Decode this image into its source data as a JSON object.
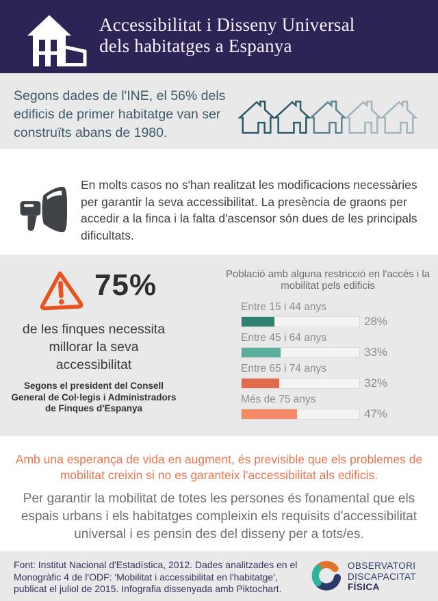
{
  "colors": {
    "header_bg": "#2d2355",
    "section_gray": "#e9e9ea",
    "accent_orange": "#e8531f",
    "highlight_orange": "#e8764e",
    "banner_text": "#3d5a68",
    "footer_navy": "#39305f"
  },
  "header": {
    "title_line1": "Accessibilitat i Disseny Universal",
    "title_line2": "dels habitatges a Espanya",
    "icon": "house-building-icon"
  },
  "ine_banner": {
    "text": "Segons dades de l'INE, el 56% dels edificis de primer habitatge van ser construïts abans de 1980.",
    "icon": "house-outline-icon",
    "house_colors": [
      "#2d5a68",
      "#2d5a68",
      "#5e8290",
      "#a2b5bd",
      "#a2b5bd"
    ]
  },
  "megaphone_note": {
    "icon": "megaphone-icon",
    "text": "En molts casos no s'han realitzat les modificacions necessàries per garantir la seva accessibilitat. La presència de graons per accedir a la finca i la falta d'ascensor són dues de les principals dificultats."
  },
  "stat_75": {
    "icon": "warning-triangle-icon",
    "value": "75%",
    "caption": "de les finques necessita millorar la seva accessibilitat",
    "source": "Segons el president del Consell General de Col·legis i Administradors de Finques d'Espanya"
  },
  "chart_data": {
    "type": "bar",
    "orientation": "horizontal",
    "title": "Població amb alguna restricció en l'accés i la mobilitat pels edificis",
    "categories": [
      "Entre 15 i 44 anys",
      "Entre 45 i 64 anys",
      "Entre 65 i 74 anys",
      "Més de 75 anys"
    ],
    "values": [
      28,
      33,
      32,
      47
    ],
    "value_labels": [
      "28%",
      "33%",
      "32%",
      "47%"
    ],
    "unit": "%",
    "xlim": [
      0,
      100
    ],
    "grid": false,
    "legend": false,
    "bar_colors": [
      "#2f8172",
      "#5cad9c",
      "#e06a4a",
      "#f68a67"
    ],
    "track_color": "#f4f4f3",
    "label_color": "#8d8d8d"
  },
  "conclusion": {
    "highlight": "Amb una esperança de vida en augment, és previsible que els problemes de mobilitat creixin si no es garanteix l'accessibilitat als edificis.",
    "body": "Per garantir la mobilitat de totes les persones és fonamental que els espais urbans i els habitatges compleixin els requisits d'accessibilitat universal i es pensin des del disseny per a tots/es."
  },
  "footer": {
    "source_text": "Font: Institut Nacional d'Estadística, 2012. Dades analitzades en el Monogràfic 4 de l'ODF: 'Mobilitat i accessibilitat en l'habitatge', publicat el juliol de 2015. Infografia dissenyada amb Piktochart.",
    "logo": {
      "icon": "odf-swirl-logo",
      "line1": "OBSERVATORI",
      "line2": "DISCAPACITAT",
      "line3": "FÍSICA"
    }
  }
}
